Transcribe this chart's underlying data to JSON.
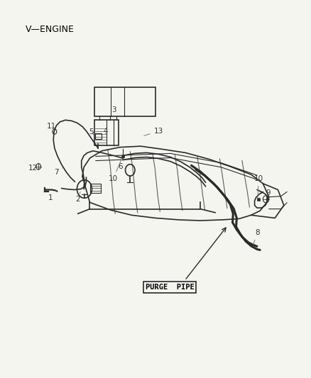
{
  "title": "V—ENGINE",
  "purge_pipe_label": "PURGE  PIPE",
  "background_color": "#f5f5f0",
  "line_color": "#2a2a2a",
  "label_color": "#333333",
  "fig_width": 4.38,
  "fig_height": 5.33,
  "dpi": 100
}
